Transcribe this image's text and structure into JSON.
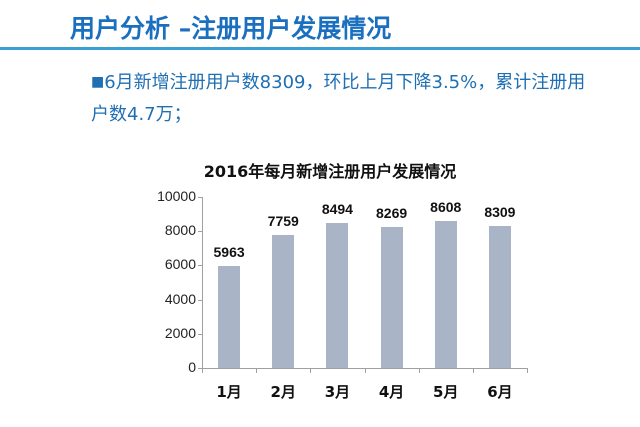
{
  "header": {
    "title": "用户分析 –注册用户发展情况"
  },
  "bullet": {
    "marker": "■",
    "text": "6月新增注册用户数8309，环比上月下降3.5%，累计注册用户数4.7万；"
  },
  "colors": {
    "title_blue": "#1b6fbf",
    "header_line": "#3a9fd1",
    "bullet_text": "#1f6fb3",
    "bar_fill": "#a9b4c6"
  },
  "chart_data": {
    "type": "bar",
    "title": "2016年每月新增注册用户发展情况",
    "categories": [
      "1月",
      "2月",
      "3月",
      "4月",
      "5月",
      "6月"
    ],
    "values": [
      5963,
      7759,
      8494,
      8269,
      8608,
      8309
    ],
    "xlabel": "",
    "ylabel": "",
    "ylim": [
      0,
      10000
    ],
    "yticks": [
      0,
      2000,
      4000,
      6000,
      8000,
      10000
    ],
    "grid": false,
    "legend": null,
    "data_labels": true
  }
}
